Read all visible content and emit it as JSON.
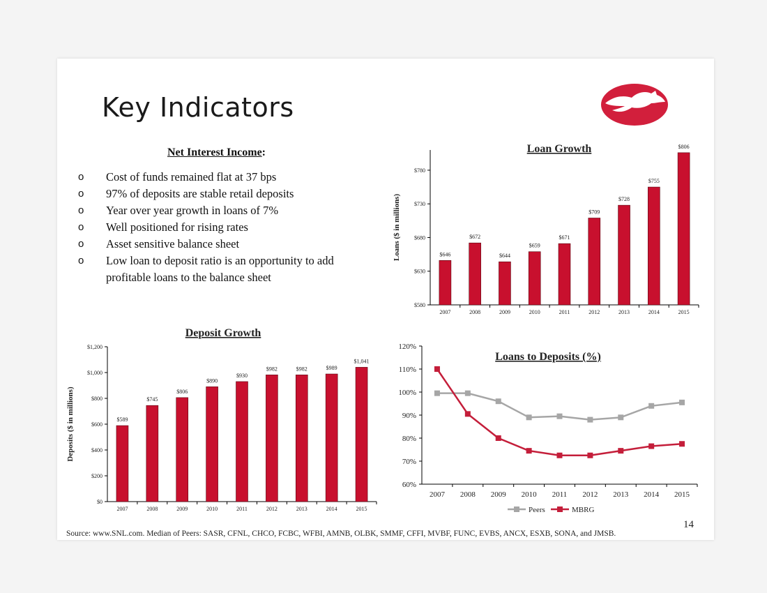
{
  "title": "Key Indicators",
  "net_interest_income": {
    "heading": "Net Interest Income",
    "colon": ":",
    "bullet_mark": "o",
    "bullets": [
      "Cost of funds remained flat at 37 bps",
      "97% of deposits are stable retail deposits",
      "Year over year growth in loans of 7%",
      "Well positioned for rising rates",
      "Asset sensitive balance sheet",
      "Low loan to deposit ratio is an opportunity to add profitable loans to the balance sheet"
    ]
  },
  "colors": {
    "bar": "#c8102e",
    "peers": "#a6a6a6",
    "mbrg": "#c41e3a",
    "logo": "#d21f3c"
  },
  "chart_data": [
    {
      "type": "bar",
      "title": "Loan Growth",
      "ylabel": "Loans ($ in millions)",
      "categories": [
        "2007",
        "2008",
        "2009",
        "2010",
        "2011",
        "2012",
        "2013",
        "2014",
        "2015"
      ],
      "values": [
        646,
        672,
        644,
        659,
        671,
        709,
        728,
        755,
        806
      ],
      "data_labels": [
        "$646",
        "$672",
        "$644",
        "$659",
        "$671",
        "$709",
        "$728",
        "$755",
        "$806"
      ],
      "ylim": [
        580,
        810
      ],
      "yticks": [
        580,
        630,
        680,
        730,
        780
      ],
      "ytick_labels": [
        "$580",
        "$630",
        "$680",
        "$730",
        "$780"
      ]
    },
    {
      "type": "bar",
      "title": "Deposit Growth",
      "ylabel": "Deposits ($ in millions)",
      "categories": [
        "2007",
        "2008",
        "2009",
        "2010",
        "2011",
        "2012",
        "2013",
        "2014",
        "2015"
      ],
      "values": [
        589,
        745,
        806,
        890,
        930,
        982,
        982,
        989,
        1041
      ],
      "data_labels": [
        "$589",
        "$745",
        "$806",
        "$890",
        "$930",
        "$982",
        "$982",
        "$989",
        "$1,041"
      ],
      "ylim": [
        0,
        1200
      ],
      "yticks": [
        0,
        200,
        400,
        600,
        800,
        1000,
        1200
      ],
      "ytick_labels": [
        "$0",
        "$200",
        "$400",
        "$600",
        "$800",
        "$1,000",
        "$1,200"
      ]
    },
    {
      "type": "line",
      "title": "Loans to Deposits (%)",
      "x": [
        "2007",
        "2008",
        "2009",
        "2010",
        "2011",
        "2012",
        "2013",
        "2014",
        "2015"
      ],
      "ylim": [
        60,
        120
      ],
      "yticks": [
        60,
        70,
        80,
        90,
        100,
        110,
        120
      ],
      "ytick_labels": [
        "60%",
        "70%",
        "80%",
        "90%",
        "100%",
        "110%",
        "120%"
      ],
      "legend_position": "bottom",
      "series": [
        {
          "name": "Peers",
          "values": [
            99.5,
            99.5,
            96,
            89,
            89.5,
            88,
            89,
            94,
            95.5
          ]
        },
        {
          "name": "MBRG",
          "values": [
            110,
            90.5,
            80,
            74.5,
            72.5,
            72.5,
            74.5,
            76.5,
            77.5
          ]
        }
      ]
    }
  ],
  "footer": "Source: www.SNL.com. Median of Peers: SASR, CFNL, CHCO, FCBC, WFBI, AMNB, OLBK, SMMF, CFFI, MVBF, FUNC, EVBS, ANCX, ESXB, SONA, and JMSB.",
  "page_number": "14"
}
